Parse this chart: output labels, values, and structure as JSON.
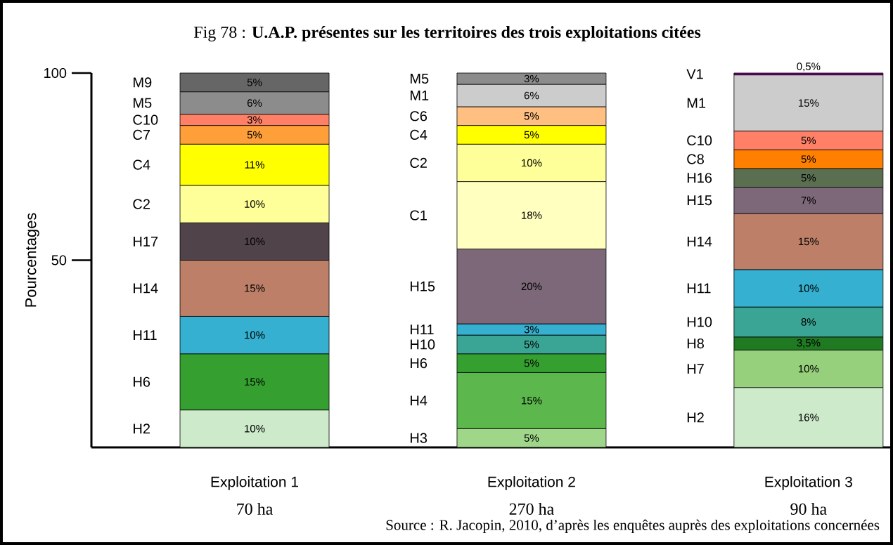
{
  "chart_data": {
    "type": "bar",
    "stacked": true,
    "title": "Fig 78 : **U.A.P. présentes sur les territoires des trois exploitations citées**",
    "ylabel": "Pourcentages",
    "categories": [
      "Exploitation 1",
      "Exploitation 2",
      "Exploitation 3"
    ],
    "ylim": [
      0,
      100
    ],
    "yticks": [
      50,
      100
    ],
    "annotations": [
      "70 ha",
      "270 ha",
      "90 ha",
      "Source : R. Jacopin, 2010, d’après les enquêtes auprès des exploitations concernées"
    ],
    "series": [
      {
        "name": "H2",
        "color": "#cdeacb",
        "values": [
          10,
          null,
          16
        ],
        "value_labels": [
          "10%",
          null,
          "16%"
        ]
      },
      {
        "name": "H3",
        "color": "#9fd68a",
        "values": [
          null,
          5,
          null
        ],
        "value_labels": [
          null,
          "5%",
          null
        ]
      },
      {
        "name": "H4",
        "color": "#5cb84c",
        "values": [
          null,
          15,
          null
        ],
        "value_labels": [
          null,
          "15%",
          null
        ]
      },
      {
        "name": "H6",
        "color": "#35a02f",
        "values": [
          15,
          5,
          null
        ],
        "value_labels": [
          "15%",
          "5%",
          null
        ]
      },
      {
        "name": "H7",
        "color": "#96d07c",
        "values": [
          null,
          null,
          10
        ],
        "value_labels": [
          null,
          null,
          "10%"
        ]
      },
      {
        "name": "H8",
        "color": "#1f7a22",
        "values": [
          null,
          null,
          3.5
        ],
        "value_labels": [
          null,
          null,
          "3,5%"
        ]
      },
      {
        "name": "H10",
        "color": "#3aa595",
        "values": [
          null,
          5,
          8
        ],
        "value_labels": [
          null,
          "5%",
          "8%"
        ]
      },
      {
        "name": "H11",
        "color": "#35b0d0",
        "values": [
          10,
          3,
          10
        ],
        "value_labels": [
          "10%",
          "3%",
          "10%"
        ]
      },
      {
        "name": "H14",
        "color": "#bd7f68",
        "values": [
          15,
          null,
          15
        ],
        "value_labels": [
          "15%",
          null,
          "15%"
        ]
      },
      {
        "name": "H15",
        "color": "#7c6878",
        "values": [
          null,
          20,
          7
        ],
        "value_labels": [
          null,
          "20%",
          "7%"
        ]
      },
      {
        "name": "H16",
        "color": "#5a6e50",
        "values": [
          null,
          null,
          5
        ],
        "value_labels": [
          null,
          null,
          "5%"
        ]
      },
      {
        "name": "H17",
        "color": "#504349",
        "values": [
          10,
          null,
          null
        ],
        "value_labels": [
          "10%",
          null,
          null
        ]
      },
      {
        "name": "C1",
        "color": "#ffffc0",
        "values": [
          null,
          18,
          null
        ],
        "value_labels": [
          null,
          "18%",
          null
        ]
      },
      {
        "name": "C2",
        "color": "#ffff99",
        "values": [
          10,
          10,
          null
        ],
        "value_labels": [
          "10%",
          "10%",
          null
        ]
      },
      {
        "name": "C4",
        "color": "#ffff00",
        "values": [
          11,
          5,
          null
        ],
        "value_labels": [
          "11%",
          "5%",
          null
        ]
      },
      {
        "name": "C6",
        "color": "#ffbf80",
        "values": [
          null,
          5,
          null
        ],
        "value_labels": [
          null,
          "5%",
          null
        ]
      },
      {
        "name": "C7",
        "color": "#ff9f3a",
        "values": [
          5,
          null,
          null
        ],
        "value_labels": [
          "5%",
          null,
          null
        ]
      },
      {
        "name": "C8",
        "color": "#ff8000",
        "values": [
          null,
          null,
          5
        ],
        "value_labels": [
          null,
          null,
          "5%"
        ]
      },
      {
        "name": "C10",
        "color": "#ff8066",
        "values": [
          3,
          null,
          5
        ],
        "value_labels": [
          "3%",
          null,
          "5%"
        ]
      },
      {
        "name": "M1",
        "color": "#cccccc",
        "values": [
          null,
          6,
          15
        ],
        "value_labels": [
          null,
          "6%",
          "15%"
        ]
      },
      {
        "name": "M5",
        "color": "#8c8c8c",
        "values": [
          6,
          3,
          null
        ],
        "value_labels": [
          "6%",
          "3%",
          null
        ]
      },
      {
        "name": "M9",
        "color": "#666666",
        "values": [
          5,
          null,
          null
        ],
        "value_labels": [
          "5%",
          null,
          null
        ]
      },
      {
        "name": "V1",
        "color": "#8b008b",
        "values": [
          null,
          null,
          0.5
        ],
        "value_labels": [
          null,
          null,
          "0,5%"
        ]
      }
    ]
  }
}
